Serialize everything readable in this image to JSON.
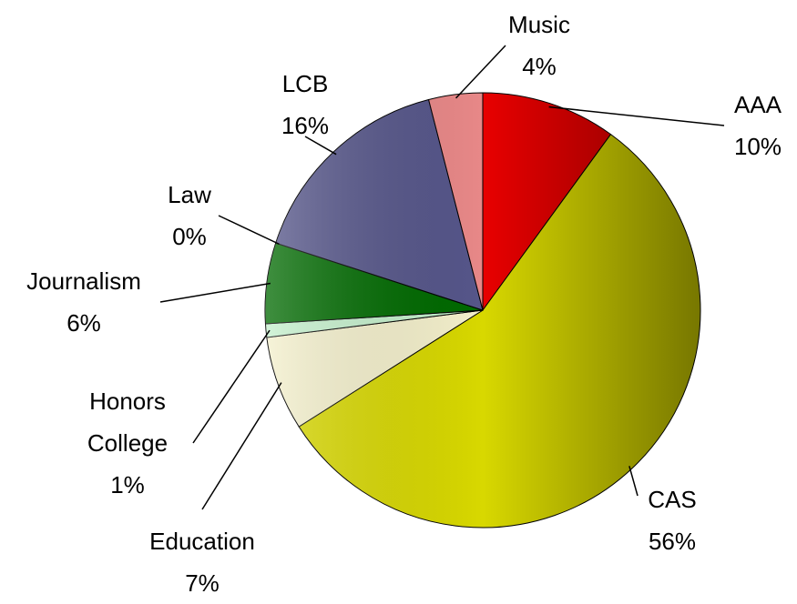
{
  "chart_data": {
    "type": "pie",
    "categories": [
      "AAA",
      "CAS",
      "Education",
      "Honors College",
      "Journalism",
      "Law",
      "LCB",
      "Music"
    ],
    "values": [
      10,
      56,
      7,
      1,
      6,
      0,
      16,
      4
    ],
    "value_labels": [
      "10%",
      "56%",
      "7%",
      "1%",
      "6%",
      "0%",
      "16%",
      "4%"
    ],
    "colors": [
      "#e80000",
      "#d8d800",
      "#f4f0cc",
      "#c4f0cc",
      "#006a00",
      "#8080a0",
      "#56568a",
      "#e88888"
    ]
  }
}
